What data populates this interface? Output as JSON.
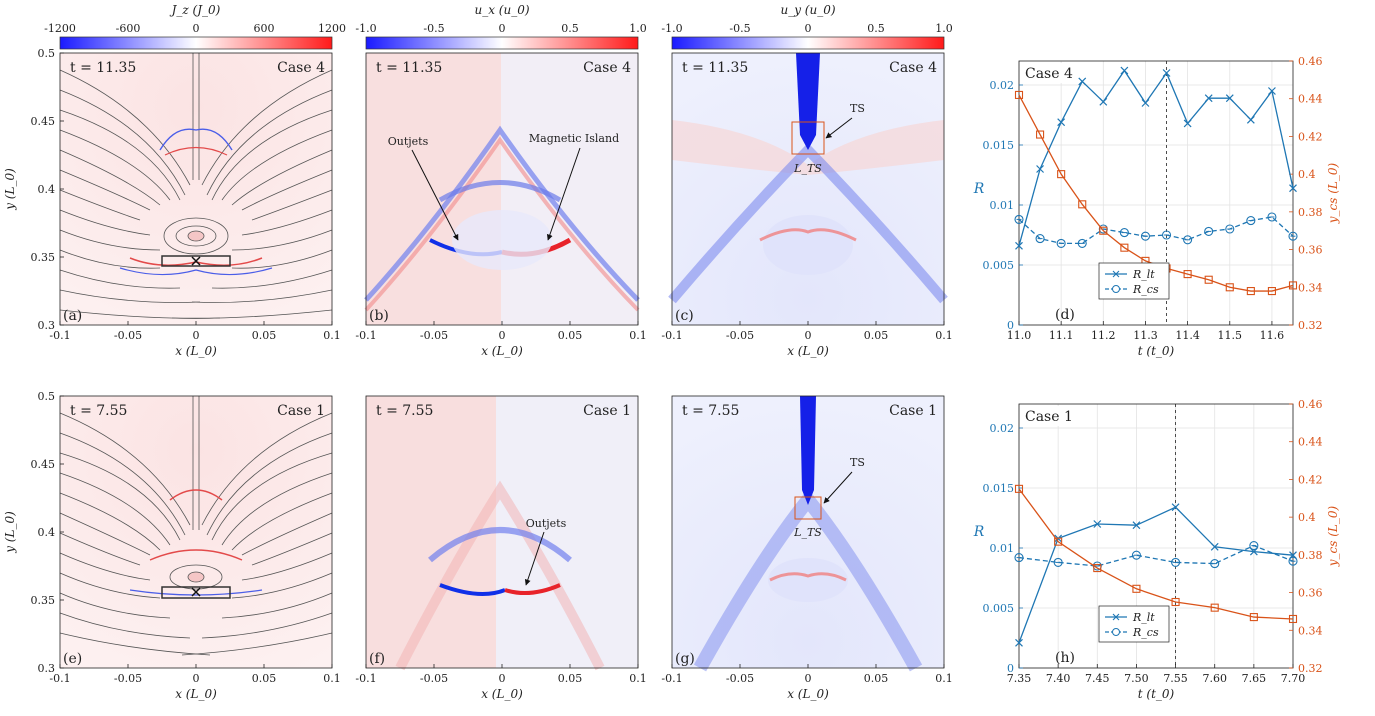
{
  "colorbars": [
    {
      "label": "J_z (J_0)",
      "ticks": [
        "-1200",
        "-600",
        "0",
        "600",
        "1200"
      ]
    },
    {
      "label": "u_x (u_0)",
      "ticks": [
        "-1.0",
        "-0.5",
        "0",
        "0.5",
        "1.0"
      ]
    },
    {
      "label": "u_y (u_0)",
      "ticks": [
        "-1.0",
        "-0.5",
        "0",
        "0.5",
        "1.0"
      ]
    }
  ],
  "field_axes": {
    "x_ticks": [
      "-0.1",
      "-0.05",
      "0",
      "0.05",
      "0.1"
    ],
    "y_ticks": [
      "0.3",
      "0.35",
      "0.4",
      "0.45",
      "0.5"
    ],
    "xlabel": "x (L_0)",
    "ylabel": "y (L_0)"
  },
  "field_panels": [
    {
      "tag": "(a)",
      "time": "t = 11.35",
      "case": "Case 4",
      "kind": "Jz"
    },
    {
      "tag": "(b)",
      "time": "t = 11.35",
      "case": "Case 4",
      "kind": "ux",
      "ann1": "Outjets",
      "ann2": "Magnetic Island"
    },
    {
      "tag": "(c)",
      "time": "t = 11.35",
      "case": "Case 4",
      "kind": "uy",
      "ann1": "TS",
      "ann2": "L_TS"
    },
    {
      "tag": "(e)",
      "time": "t = 7.55",
      "case": "Case 1",
      "kind": "Jz"
    },
    {
      "tag": "(f)",
      "time": "t = 7.55",
      "case": "Case 1",
      "kind": "ux",
      "ann1": "Outjets"
    },
    {
      "tag": "(g)",
      "time": "t = 7.55",
      "case": "Case 1",
      "kind": "uy",
      "ann1": "TS",
      "ann2": "L_TS"
    }
  ],
  "colors": {
    "blue_series": "#1f77b4",
    "orange_series": "#d95319",
    "field_red": "#e8232a",
    "field_blue": "#1f2fe6"
  },
  "chart_data": [
    {
      "type": "line",
      "tag": "(d)",
      "case_label": "Case 4",
      "xlabel": "t (t_0)",
      "ylabel_left": "R",
      "ylabel_right": "y_cs (L_0)",
      "xlim": [
        11.0,
        11.65
      ],
      "ylim_left": [
        0,
        0.022
      ],
      "ylim_right": [
        0.32,
        0.46
      ],
      "x_ticks": [
        "11.0",
        "11.1",
        "11.2",
        "11.3",
        "11.4",
        "11.5",
        "11.6"
      ],
      "y_left_ticks": [
        "0",
        "0.005",
        "0.01",
        "0.015",
        "0.02"
      ],
      "y_right_ticks": [
        "0.32",
        "0.34",
        "0.36",
        "0.38",
        "0.4",
        "0.42",
        "0.44",
        "0.46"
      ],
      "marked_time": 11.35,
      "legend": [
        "R_lt",
        "R_cs"
      ],
      "x": [
        11.0,
        11.05,
        11.1,
        11.15,
        11.2,
        11.25,
        11.3,
        11.35,
        11.4,
        11.45,
        11.5,
        11.55,
        11.6,
        11.65
      ],
      "series": [
        {
          "name": "R_lt",
          "axis": "left",
          "marker": "x",
          "dash": false,
          "values": [
            0.0066,
            0.013,
            0.0169,
            0.0203,
            0.0186,
            0.0212,
            0.0185,
            0.021,
            0.0168,
            0.0189,
            0.0189,
            0.0171,
            0.0195,
            0.0114
          ]
        },
        {
          "name": "R_cs",
          "axis": "left",
          "marker": "o",
          "dash": true,
          "values": [
            0.0088,
            0.0072,
            0.0068,
            0.0068,
            0.008,
            0.0077,
            0.0074,
            0.0075,
            0.0071,
            0.0078,
            0.008,
            0.0087,
            0.009,
            0.0074
          ]
        },
        {
          "name": "y_cs",
          "axis": "right",
          "marker": "s",
          "dash": false,
          "values": [
            0.442,
            0.421,
            0.4,
            0.384,
            0.37,
            0.361,
            0.354,
            0.35,
            0.347,
            0.344,
            0.34,
            0.338,
            0.338,
            0.341
          ]
        }
      ]
    },
    {
      "type": "line",
      "tag": "(h)",
      "case_label": "Case 1",
      "xlabel": "t (t_0)",
      "ylabel_left": "R",
      "ylabel_right": "y_cs (L_0)",
      "xlim": [
        7.35,
        7.7
      ],
      "ylim_left": [
        0,
        0.022
      ],
      "ylim_right": [
        0.32,
        0.46
      ],
      "x_ticks": [
        "7.35",
        "7.40",
        "7.45",
        "7.50",
        "7.55",
        "7.60",
        "7.65",
        "7.70"
      ],
      "y_left_ticks": [
        "0",
        "0.005",
        "0.01",
        "0.015",
        "0.02"
      ],
      "y_right_ticks": [
        "0.32",
        "0.34",
        "0.36",
        "0.38",
        "0.4",
        "0.42",
        "0.44",
        "0.46"
      ],
      "marked_time": 7.55,
      "legend": [
        "R_lt",
        "R_cs"
      ],
      "x": [
        7.35,
        7.4,
        7.45,
        7.5,
        7.55,
        7.6,
        7.65,
        7.7
      ],
      "series": [
        {
          "name": "R_lt",
          "axis": "left",
          "marker": "x",
          "dash": false,
          "values": [
            0.0021,
            0.0108,
            0.012,
            0.0119,
            0.0134,
            0.0101,
            0.0097,
            0.0094
          ]
        },
        {
          "name": "R_cs",
          "axis": "left",
          "marker": "o",
          "dash": true,
          "values": [
            0.0092,
            0.0088,
            0.0085,
            0.0094,
            0.0088,
            0.0087,
            0.0102,
            0.0089
          ]
        },
        {
          "name": "y_cs",
          "axis": "right",
          "marker": "s",
          "dash": false,
          "values": [
            0.415,
            0.387,
            0.373,
            0.362,
            0.355,
            0.352,
            0.347,
            0.346
          ]
        }
      ]
    }
  ]
}
